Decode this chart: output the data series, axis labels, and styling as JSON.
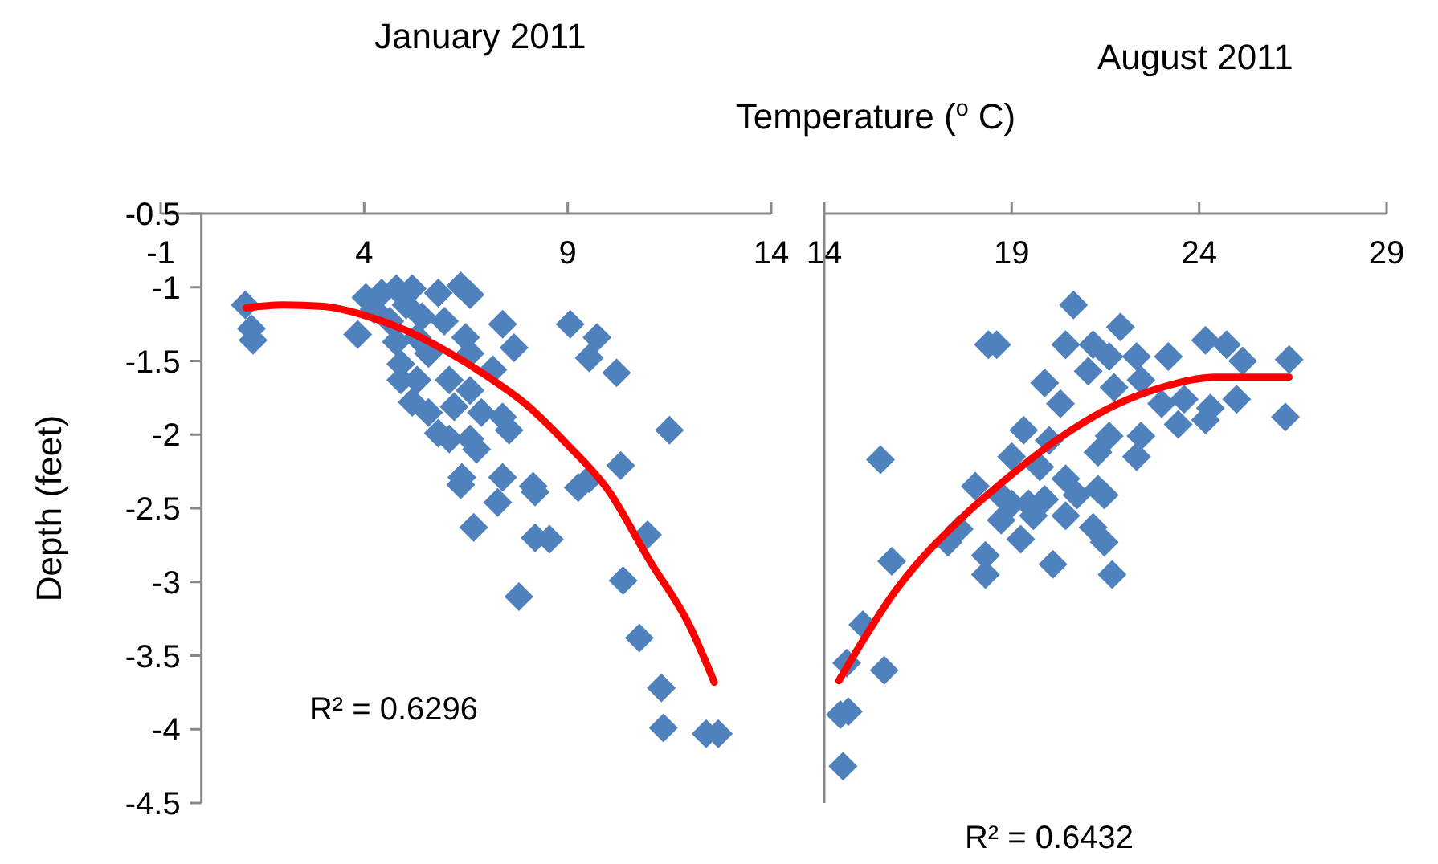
{
  "chart_data": [
    {
      "type": "scatter",
      "title": "January 2011",
      "xlabel": "Temperature ($^{o}$ C)",
      "ylabel": "Depth (feet)",
      "xlim": [
        -1,
        14
      ],
      "xticks": [
        -1,
        4,
        9,
        14
      ],
      "ylim": [
        -4.5,
        -0.5
      ],
      "yticks": [
        -0.5,
        -1,
        -1.5,
        -2,
        -2.5,
        -3,
        -3.5,
        -4,
        -4.5
      ],
      "annotations": [
        "R² = 0.6296"
      ],
      "series": [
        {
          "type": "scatter",
          "marker": "diamond",
          "color": "#4f81bd",
          "x": [
            1.08,
            1.23,
            1.27,
            3.84,
            4.04,
            4.43,
            4.79,
            5.18,
            5.82,
            6.6,
            6.37,
            4.24,
            4.63,
            5.03,
            5.42,
            5.97,
            4.79,
            5.3,
            4.9,
            5.58,
            6.49,
            7.4,
            7.68,
            6.6,
            7.16,
            4.9,
            5.3,
            6.09,
            6.6,
            5.18,
            5.58,
            6.21,
            6.88,
            7.4,
            7.56,
            5.82,
            6.6,
            6.76,
            6.09,
            9.06,
            9.72,
            9.53,
            10.2,
            11.5,
            10.3,
            9.53,
            9.26,
            6.4,
            7.4,
            8.15,
            6.37,
            7.28,
            6.69,
            8.2,
            8.2,
            8.55,
            7.8,
            10.96,
            10.36,
            10.76,
            11.3,
            11.35,
            12.4,
            12.7
          ],
          "values": [
            -1.12,
            -1.28,
            -1.36,
            -1.32,
            -1.07,
            -1.04,
            -1.01,
            -1.01,
            -1.04,
            -1.05,
            -0.99,
            -1.15,
            -1.23,
            -1.12,
            -1.2,
            -1.23,
            -1.37,
            -1.34,
            -1.52,
            -1.45,
            -1.34,
            -1.25,
            -1.41,
            -1.45,
            -1.56,
            -1.63,
            -1.63,
            -1.63,
            -1.7,
            -1.78,
            -1.85,
            -1.81,
            -1.85,
            -1.88,
            -1.97,
            -1.99,
            -2.03,
            -2.1,
            -2.03,
            -1.25,
            -1.34,
            -1.48,
            -1.58,
            -1.97,
            -2.21,
            -2.3,
            -2.36,
            -2.29,
            -2.29,
            -2.35,
            -2.34,
            -2.46,
            -2.63,
            -2.39,
            -2.7,
            -2.71,
            -3.1,
            -2.68,
            -2.99,
            -3.38,
            -3.72,
            -3.99,
            -4.03,
            -4.03
          ]
        },
        {
          "type": "line",
          "marker": "none",
          "color": "#ff0000",
          "x": [
            1.1,
            2,
            3,
            4,
            5,
            6,
            7,
            8,
            9,
            10,
            11,
            12,
            12.6
          ],
          "values": [
            -1.14,
            -1.12,
            -1.13,
            -1.19,
            -1.29,
            -1.43,
            -1.6,
            -1.8,
            -2.07,
            -2.38,
            -2.85,
            -3.3,
            -3.68
          ]
        }
      ]
    },
    {
      "type": "scatter",
      "title": "August 2011",
      "xlim": [
        14,
        29
      ],
      "xticks": [
        14,
        19,
        24,
        29
      ],
      "ylim": [
        -4.5,
        -0.5
      ],
      "tick_labels": "x",
      "annotations": [
        "R² = 0.6432"
      ],
      "series": [
        {
          "type": "scatter",
          "marker": "diamond",
          "color": "#4f81bd",
          "x": [
            20.65,
            18.38,
            18.6,
            15.5,
            26.4,
            26.3,
            20.44,
            21.17,
            21.9,
            21.6,
            22.33,
            23.18,
            24.17,
            24.73,
            25.16,
            19.88,
            20.3,
            21.04,
            21.73,
            22.45,
            23.0,
            23.6,
            24.3,
            25.0,
            23.44,
            24.17,
            19.32,
            20.0,
            21.6,
            22.45,
            21.3,
            22.33,
            19.0,
            19.75,
            20.44,
            18.03,
            21.3,
            18.7,
            19.45,
            19.0,
            19.88,
            20.74,
            21.47,
            18.72,
            19.58,
            20.44,
            21.17,
            21.47,
            17.3,
            17.6,
            19.24,
            18.3,
            18.3,
            20.1,
            21.68,
            15.8,
            15.03,
            14.6,
            15.6,
            14.43,
            14.64,
            14.5
          ],
          "values": [
            -1.12,
            -1.39,
            -1.39,
            -2.17,
            -1.49,
            -1.88,
            -1.39,
            -1.39,
            -1.27,
            -1.47,
            -1.47,
            -1.47,
            -1.36,
            -1.39,
            -1.5,
            -1.65,
            -1.79,
            -1.57,
            -1.68,
            -1.63,
            -1.79,
            -1.76,
            -1.82,
            -1.76,
            -1.93,
            -1.9,
            -1.97,
            -2.04,
            -2.01,
            -2.01,
            -2.12,
            -2.15,
            -2.15,
            -2.22,
            -2.3,
            -2.35,
            -2.37,
            -2.41,
            -2.47,
            -2.47,
            -2.44,
            -2.41,
            -2.41,
            -2.58,
            -2.55,
            -2.55,
            -2.63,
            -2.73,
            -2.73,
            -2.64,
            -2.71,
            -2.82,
            -2.95,
            -2.88,
            -2.95,
            -2.86,
            -3.29,
            -3.55,
            -3.6,
            -3.9,
            -3.88,
            -4.25
          ]
        },
        {
          "type": "line",
          "marker": "none",
          "color": "#ff0000",
          "x": [
            14.39,
            15.9,
            17.73,
            18.72,
            20.18,
            21.6,
            23.0,
            24.47,
            26.4
          ],
          "values": [
            -3.67,
            -3.06,
            -2.55,
            -2.33,
            -2.04,
            -1.82,
            -1.68,
            -1.61,
            -1.61
          ]
        }
      ]
    }
  ]
}
